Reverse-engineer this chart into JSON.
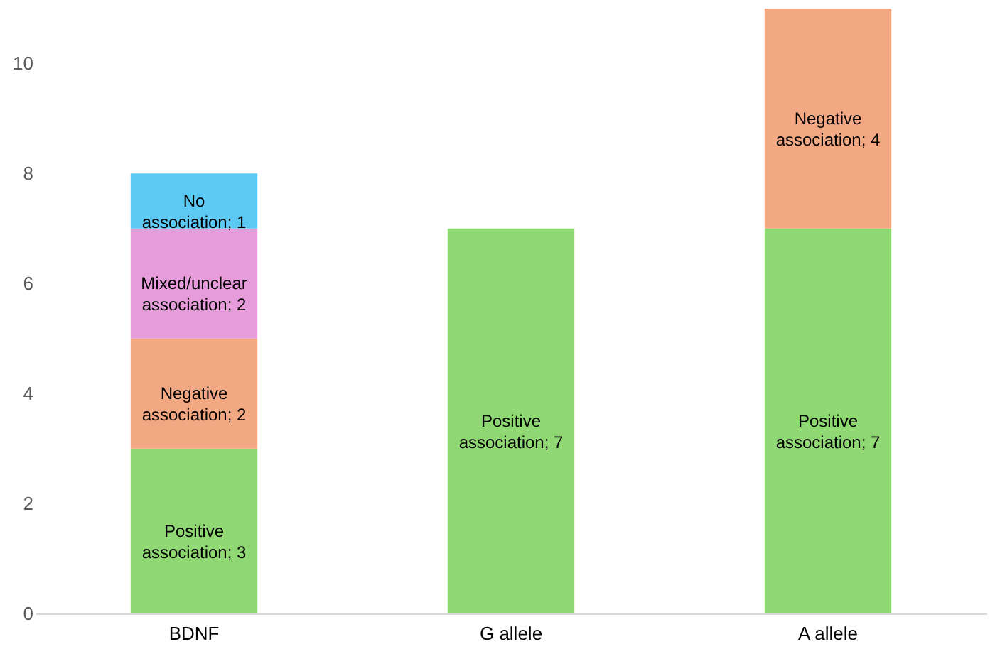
{
  "chart_data": {
    "type": "bar",
    "stacked": true,
    "categories": [
      "BDNF",
      "G allele",
      "A allele"
    ],
    "series": [
      {
        "color": "#8fd873",
        "values": [
          3,
          7,
          7
        ],
        "value_labels": [
          "Positive association; 3",
          "Positive association; 7",
          "Positive association; 7"
        ]
      },
      {
        "color": "#f2a882",
        "values": [
          2,
          null,
          4
        ],
        "value_labels": [
          "Negative association; 2",
          null,
          "Negative association; 4"
        ]
      },
      {
        "color": "#e69cdb",
        "values": [
          2,
          null,
          null
        ],
        "value_labels": [
          "Mixed/unclear association; 2",
          null,
          null
        ]
      },
      {
        "color": "#5ccaf5",
        "values": [
          1,
          null,
          null
        ],
        "value_labels": [
          "No association; 1",
          null,
          null
        ]
      }
    ],
    "ylim": [
      0,
      11
    ],
    "yticks": [
      0,
      2,
      4,
      6,
      8,
      10
    ]
  }
}
